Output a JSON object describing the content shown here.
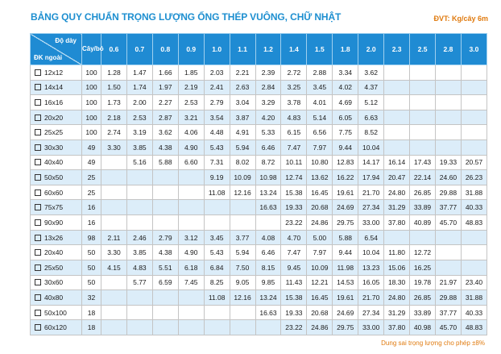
{
  "title": "BẢNG QUY CHUẨN TRỌNG LƯỢNG ỐNG THÉP VUÔNG, CHỮ NHẬT",
  "unit": "ĐVT: Kg/cây 6m",
  "header": {
    "thickness_label": "Độ dày",
    "outer_label": "ĐK ngoài",
    "qty_label": "Cây/bó",
    "thicknesses": [
      "0.6",
      "0.7",
      "0.8",
      "0.9",
      "1.0",
      "1.1",
      "1.2",
      "1.4",
      "1.5",
      "1.8",
      "2.0",
      "2.3",
      "2.5",
      "2.8",
      "3.0"
    ]
  },
  "rows": [
    {
      "size": "12x12",
      "qty": "100",
      "values": [
        "1.28",
        "1.47",
        "1.66",
        "1.85",
        "2.03",
        "2.21",
        "2.39",
        "2.72",
        "2.88",
        "3.34",
        "3.62",
        "",
        "",
        "",
        ""
      ]
    },
    {
      "size": "14x14",
      "qty": "100",
      "values": [
        "1.50",
        "1.74",
        "1.97",
        "2.19",
        "2.41",
        "2.63",
        "2.84",
        "3.25",
        "3.45",
        "4.02",
        "4.37",
        "",
        "",
        "",
        ""
      ]
    },
    {
      "size": "16x16",
      "qty": "100",
      "values": [
        "1.73",
        "2.00",
        "2.27",
        "2.53",
        "2.79",
        "3.04",
        "3.29",
        "3.78",
        "4.01",
        "4.69",
        "5.12",
        "",
        "",
        "",
        ""
      ]
    },
    {
      "size": "20x20",
      "qty": "100",
      "values": [
        "2.18",
        "2.53",
        "2.87",
        "3.21",
        "3.54",
        "3.87",
        "4.20",
        "4.83",
        "5.14",
        "6.05",
        "6.63",
        "",
        "",
        "",
        ""
      ]
    },
    {
      "size": "25x25",
      "qty": "100",
      "values": [
        "2.74",
        "3.19",
        "3.62",
        "4.06",
        "4.48",
        "4.91",
        "5.33",
        "6.15",
        "6.56",
        "7.75",
        "8.52",
        "",
        "",
        "",
        ""
      ]
    },
    {
      "size": "30x30",
      "qty": "49",
      "values": [
        "3.30",
        "3.85",
        "4.38",
        "4.90",
        "5.43",
        "5.94",
        "6.46",
        "7.47",
        "7.97",
        "9.44",
        "10.04",
        "",
        "",
        "",
        ""
      ]
    },
    {
      "size": "40x40",
      "qty": "49",
      "values": [
        "",
        "5.16",
        "5.88",
        "6.60",
        "7.31",
        "8.02",
        "8.72",
        "10.11",
        "10.80",
        "12.83",
        "14.17",
        "16.14",
        "17.43",
        "19.33",
        "20.57"
      ]
    },
    {
      "size": "50x50",
      "qty": "25",
      "values": [
        "",
        "",
        "",
        "",
        "9.19",
        "10.09",
        "10.98",
        "12.74",
        "13.62",
        "16.22",
        "17.94",
        "20.47",
        "22.14",
        "24.60",
        "26.23"
      ]
    },
    {
      "size": "60x60",
      "qty": "25",
      "values": [
        "",
        "",
        "",
        "",
        "11.08",
        "12.16",
        "13.24",
        "15.38",
        "16.45",
        "19.61",
        "21.70",
        "24.80",
        "26.85",
        "29.88",
        "31.88"
      ]
    },
    {
      "size": "75x75",
      "qty": "16",
      "values": [
        "",
        "",
        "",
        "",
        "",
        "",
        "16.63",
        "19.33",
        "20.68",
        "24.69",
        "27.34",
        "31.29",
        "33.89",
        "37.77",
        "40.33"
      ]
    },
    {
      "size": "90x90",
      "qty": "16",
      "values": [
        "",
        "",
        "",
        "",
        "",
        "",
        "",
        "23.22",
        "24.86",
        "29.75",
        "33.00",
        "37.80",
        "40.89",
        "45.70",
        "48.83"
      ]
    },
    {
      "size": "13x26",
      "qty": "98",
      "values": [
        "2.11",
        "2.46",
        "2.79",
        "3.12",
        "3.45",
        "3.77",
        "4.08",
        "4.70",
        "5.00",
        "5.88",
        "6.54",
        "",
        "",
        "",
        ""
      ]
    },
    {
      "size": "20x40",
      "qty": "50",
      "values": [
        "3.30",
        "3.85",
        "4.38",
        "4.90",
        "5.43",
        "5.94",
        "6.46",
        "7.47",
        "7.97",
        "9.44",
        "10.04",
        "11.80",
        "12.72",
        "",
        ""
      ]
    },
    {
      "size": "25x50",
      "qty": "50",
      "values": [
        "4.15",
        "4.83",
        "5.51",
        "6.18",
        "6.84",
        "7.50",
        "8.15",
        "9.45",
        "10.09",
        "11.98",
        "13.23",
        "15.06",
        "16.25",
        "",
        ""
      ]
    },
    {
      "size": "30x60",
      "qty": "50",
      "values": [
        "",
        "5.77",
        "6.59",
        "7.45",
        "8.25",
        "9.05",
        "9.85",
        "11.43",
        "12.21",
        "14.53",
        "16.05",
        "18.30",
        "19.78",
        "21.97",
        "23.40"
      ]
    },
    {
      "size": "40x80",
      "qty": "32",
      "values": [
        "",
        "",
        "",
        "",
        "11.08",
        "12.16",
        "13.24",
        "15.38",
        "16.45",
        "19.61",
        "21.70",
        "24.80",
        "26.85",
        "29.88",
        "31.88"
      ]
    },
    {
      "size": "50x100",
      "qty": "18",
      "values": [
        "",
        "",
        "",
        "",
        "",
        "",
        "16.63",
        "19.33",
        "20.68",
        "24.69",
        "27.34",
        "31.29",
        "33.89",
        "37.77",
        "40.33"
      ]
    },
    {
      "size": "60x120",
      "qty": "18",
      "values": [
        "",
        "",
        "",
        "",
        "",
        "",
        "",
        "23.22",
        "24.86",
        "29.75",
        "33.00",
        "37.80",
        "40.98",
        "45.70",
        "48.83"
      ]
    }
  ],
  "note": "Dung sai trọng lượng cho phép ±8%"
}
